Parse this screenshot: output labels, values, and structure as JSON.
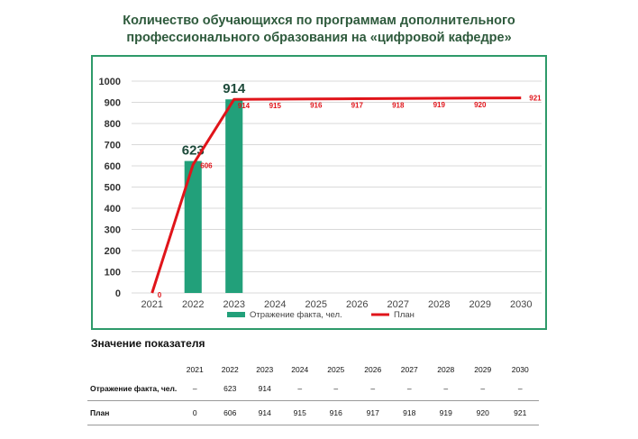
{
  "chart_data": {
    "type": "bar",
    "title_lines": [
      "Количество обучающихся по программам дополнительного",
      "профессионального образования на «цифровой кафедре»"
    ],
    "categories": [
      "2021",
      "2022",
      "2023",
      "2024",
      "2025",
      "2026",
      "2027",
      "2028",
      "2029",
      "2030"
    ],
    "ylim": [
      0,
      1000
    ],
    "yticks": [
      "0",
      "100",
      "200",
      "300",
      "400",
      "500",
      "600",
      "700",
      "800",
      "900",
      "1000"
    ],
    "grid": true,
    "legend_position": "bottom",
    "series": [
      {
        "name": "Отражение факта, чел.",
        "kind": "bar",
        "color": "#22a07a",
        "values": [
          null,
          623,
          914,
          null,
          null,
          null,
          null,
          null,
          null,
          null
        ]
      },
      {
        "name": "План",
        "kind": "line",
        "color": "#e0141a",
        "values": [
          0,
          606,
          914,
          915,
          916,
          917,
          918,
          919,
          920,
          921
        ]
      }
    ]
  },
  "table": {
    "heading": "Значение показателя",
    "years": [
      "2021",
      "2022",
      "2023",
      "2024",
      "2025",
      "2026",
      "2027",
      "2028",
      "2029",
      "2030"
    ],
    "rows": [
      {
        "label": "Отражение факта, чел.",
        "values": [
          "–",
          "623",
          "914",
          "–",
          "–",
          "–",
          "–",
          "–",
          "–",
          "–"
        ]
      },
      {
        "label": "План",
        "values": [
          "0",
          "606",
          "914",
          "915",
          "916",
          "917",
          "918",
          "919",
          "920",
          "921"
        ]
      }
    ]
  }
}
